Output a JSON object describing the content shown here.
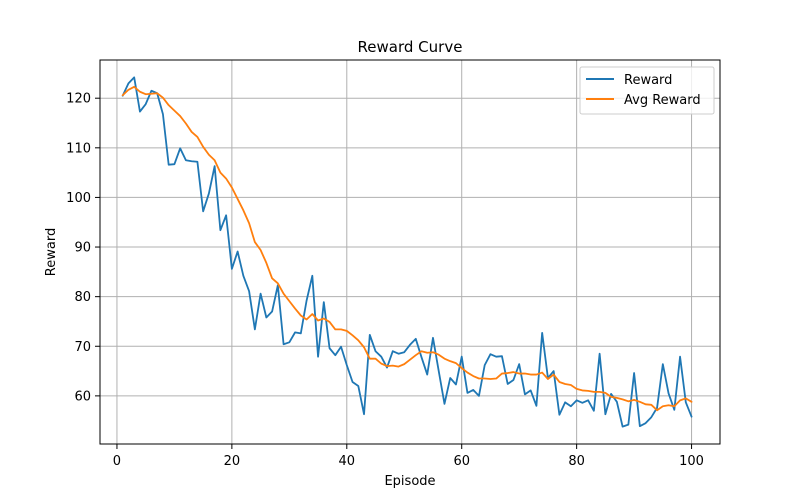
{
  "chart_data": {
    "type": "line",
    "title": "Reward Curve",
    "xlabel": "Episode",
    "ylabel": "Reward",
    "xlim": [
      -2.95,
      104.95
    ],
    "ylim": [
      50.3,
      127.7
    ],
    "xticks": [
      0,
      20,
      40,
      60,
      80,
      100
    ],
    "yticks": [
      60,
      70,
      80,
      90,
      100,
      110,
      120
    ],
    "grid": true,
    "legend_position": "top-right",
    "colors": {
      "Reward": "#1f77b4",
      "Avg Reward": "#ff7f0e"
    },
    "x": [
      1,
      2,
      3,
      4,
      5,
      6,
      7,
      8,
      9,
      10,
      11,
      12,
      13,
      14,
      15,
      16,
      17,
      18,
      19,
      20,
      21,
      22,
      23,
      24,
      25,
      26,
      27,
      28,
      29,
      30,
      31,
      32,
      33,
      34,
      35,
      36,
      37,
      38,
      39,
      40,
      41,
      42,
      43,
      44,
      45,
      46,
      47,
      48,
      49,
      50,
      51,
      52,
      53,
      54,
      55,
      56,
      57,
      58,
      59,
      60,
      61,
      62,
      63,
      64,
      65,
      66,
      67,
      68,
      69,
      70,
      71,
      72,
      73,
      74,
      75,
      76,
      77,
      78,
      79,
      80,
      81,
      82,
      83,
      84,
      85,
      86,
      87,
      88,
      89,
      90,
      91,
      92,
      93,
      94,
      95,
      96,
      97,
      98,
      99,
      100
    ],
    "series": [
      {
        "name": "Reward",
        "values": [
          120.5,
          123.0,
          124.2,
          117.3,
          118.8,
          121.5,
          121.0,
          116.8,
          106.6,
          106.7,
          109.9,
          107.5,
          107.3,
          107.2,
          97.2,
          100.8,
          106.3,
          93.4,
          96.4,
          85.6,
          89.1,
          84.2,
          81.1,
          73.4,
          80.6,
          75.8,
          77.0,
          82.3,
          70.4,
          70.8,
          72.8,
          72.6,
          79.2,
          84.2,
          67.9,
          78.9,
          69.6,
          68.2,
          69.9,
          66.2,
          62.8,
          62.0,
          56.3,
          72.3,
          69.0,
          67.9,
          65.7,
          69.0,
          68.5,
          68.8,
          70.3,
          71.5,
          67.8,
          64.3,
          71.7,
          65.0,
          58.4,
          63.6,
          62.3,
          67.9,
          60.6,
          61.2,
          60.0,
          66.2,
          68.4,
          67.9,
          68.0,
          62.4,
          63.2,
          66.4,
          60.3,
          61.1,
          58.0,
          72.7,
          63.6,
          65.0,
          56.2,
          58.7,
          57.9,
          59.1,
          58.6,
          59.1,
          57.0,
          68.5,
          56.3,
          60.4,
          58.8,
          53.8,
          54.2,
          64.6,
          53.9,
          54.5,
          55.7,
          57.6,
          66.4,
          60.5,
          57.2,
          67.9,
          58.7,
          55.8
        ]
      },
      {
        "name": "Avg Reward",
        "values": [
          120.6,
          121.7,
          122.3,
          121.3,
          120.8,
          120.9,
          121.0,
          120.1,
          118.6,
          117.5,
          116.4,
          114.9,
          113.2,
          112.2,
          110.2,
          108.6,
          107.5,
          105.0,
          103.8,
          102.0,
          99.7,
          97.4,
          94.8,
          91.0,
          89.4,
          86.8,
          83.7,
          82.7,
          80.6,
          79.1,
          77.6,
          76.2,
          75.4,
          76.5,
          75.2,
          75.6,
          74.9,
          73.4,
          73.4,
          73.1,
          72.2,
          71.2,
          69.8,
          67.5,
          67.5,
          66.5,
          66.0,
          66.1,
          65.9,
          66.4,
          67.3,
          68.2,
          69.0,
          68.7,
          68.8,
          68.3,
          67.5,
          67.0,
          66.6,
          65.6,
          64.7,
          64.0,
          63.5,
          63.5,
          63.4,
          63.5,
          64.5,
          64.6,
          64.8,
          64.5,
          64.5,
          64.3,
          64.3,
          64.7,
          63.4,
          64.3,
          62.8,
          62.4,
          62.2,
          61.4,
          61.1,
          61.0,
          60.8,
          60.8,
          60.6,
          59.8,
          59.6,
          59.3,
          58.9,
          59.2,
          58.8,
          58.3,
          58.2,
          57.1,
          57.9,
          58.1,
          57.9,
          59.1,
          59.5,
          58.8
        ]
      }
    ]
  }
}
